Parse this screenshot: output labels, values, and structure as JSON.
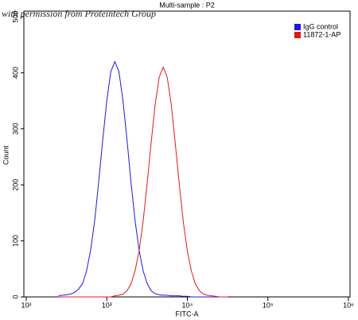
{
  "chart_data": {
    "type": "line",
    "title": "Multi-sample : P2",
    "watermark": "with permission from Proteintech Group",
    "xlabel": "FITC-A",
    "ylabel": "Count",
    "xscale": "log",
    "xlim": [
      100,
      1000000
    ],
    "xticks": [
      {
        "value": 100,
        "label": "10²"
      },
      {
        "value": 1000,
        "label": "10³"
      },
      {
        "value": 10000,
        "label": "10⁴"
      },
      {
        "value": 100000,
        "label": "10⁵"
      },
      {
        "value": 1000000,
        "label": "10⁶"
      }
    ],
    "ylim": [
      0,
      510
    ],
    "yticks": [
      0,
      100,
      200,
      300,
      400,
      500
    ],
    "legend": "upper right",
    "x": [
      251,
      282,
      316,
      355,
      398,
      447,
      501,
      562,
      631,
      708,
      794,
      891,
      1000,
      1122,
      1259,
      1413,
      1585,
      1778,
      1995,
      2239,
      2512,
      2818,
      3162,
      3548,
      3981,
      4467,
      5012,
      5623,
      6310,
      7079,
      7943,
      8913,
      10000,
      11220,
      12589,
      14125,
      15849,
      17783,
      19953,
      22387,
      25119,
      28184,
      31623
    ],
    "series": [
      {
        "name": "IgG control",
        "color": "#1a1adb",
        "values": [
          2,
          3,
          4,
          5,
          8,
          14,
          24,
          47,
          84,
          137,
          206,
          281,
          351,
          402,
          420,
          402,
          351,
          281,
          206,
          137,
          84,
          47,
          24,
          11,
          6,
          4,
          3,
          3,
          2,
          2,
          2,
          1,
          1,
          0,
          0,
          0,
          0,
          0,
          0,
          0,
          0,
          0,
          0
        ]
      },
      {
        "name": "11872-1-AP",
        "color": "#e01818",
        "values": [
          0,
          0,
          0,
          0,
          0,
          0,
          0,
          0,
          0,
          0,
          0,
          0,
          0,
          0,
          2,
          3,
          5,
          11,
          23,
          46,
          82,
          134,
          201,
          274,
          343,
          392,
          410,
          392,
          343,
          274,
          201,
          134,
          82,
          46,
          23,
          11,
          5,
          3,
          2,
          1,
          0,
          0,
          0
        ]
      }
    ]
  }
}
